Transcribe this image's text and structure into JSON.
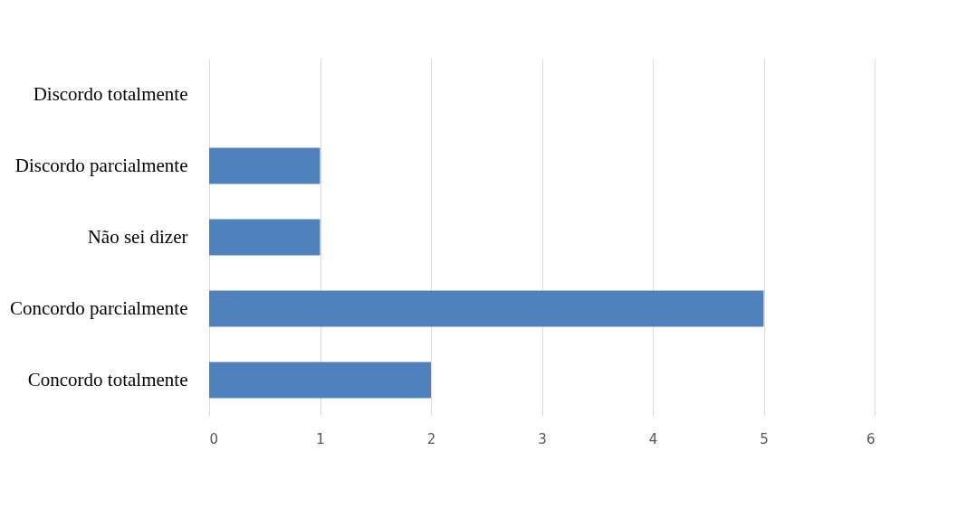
{
  "chart_data": {
    "type": "bar",
    "orientation": "horizontal",
    "categories": [
      "Discordo totalmente",
      "Discordo parcialmente",
      "Não sei dizer",
      "Concordo parcialmente",
      "Concordo totalmente"
    ],
    "values": [
      0,
      1,
      1,
      5,
      2
    ],
    "color": "#4f81bd",
    "xlim": [
      0,
      6
    ],
    "xticks": [
      0,
      1,
      2,
      3,
      4,
      5,
      6
    ],
    "grid": "x"
  }
}
